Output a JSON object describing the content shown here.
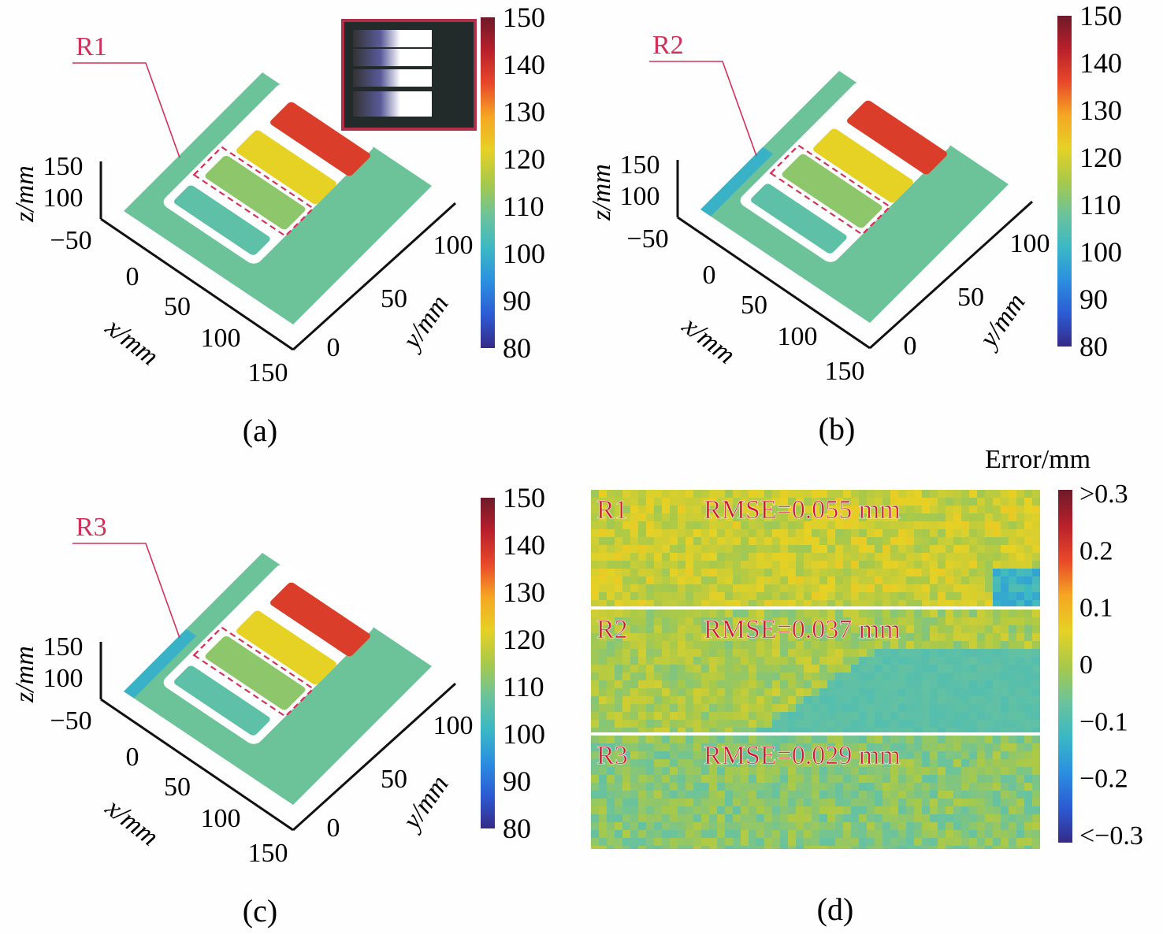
{
  "colormap": [
    "#352a87",
    "#2c5bd4",
    "#2b8fe0",
    "#3bb8c4",
    "#6cc39a",
    "#a8c94a",
    "#e6d125",
    "#f5a623",
    "#e8482a",
    "#b8202b",
    "#6e1a2a"
  ],
  "chart_data": [
    {
      "type": "surface3d",
      "panel_label": "(a)",
      "region_label": "R1",
      "xlabel": "x/mm",
      "ylabel": "y/mm",
      "zlabel": "z/mm",
      "x_ticks": [
        "0",
        "50",
        "100",
        "150"
      ],
      "y_ticks": [
        "0",
        "50",
        "100"
      ],
      "z_ticks": [
        "150",
        "100",
        "−50"
      ],
      "colorbar": {
        "ticks": [
          "150",
          "140",
          "130",
          "120",
          "110",
          "100",
          "90",
          "80"
        ],
        "range": [
          80,
          150
        ]
      },
      "inset": "photo of stepped specimen",
      "steps_height_mm": [
        106,
        112,
        122,
        138
      ]
    },
    {
      "type": "surface3d",
      "panel_label": "(b)",
      "region_label": "R2",
      "xlabel": "x/mm",
      "ylabel": "y/mm",
      "zlabel": "z/mm",
      "x_ticks": [
        "0",
        "50",
        "100",
        "150"
      ],
      "y_ticks": [
        "0",
        "50",
        "100"
      ],
      "z_ticks": [
        "150",
        "100",
        "−50"
      ],
      "colorbar": {
        "ticks": [
          "150",
          "140",
          "130",
          "120",
          "110",
          "100",
          "90",
          "80"
        ],
        "range": [
          80,
          150
        ]
      },
      "steps_height_mm": [
        106,
        112,
        122,
        138
      ]
    },
    {
      "type": "surface3d",
      "panel_label": "(c)",
      "region_label": "R3",
      "xlabel": "x/mm",
      "ylabel": "y/mm",
      "zlabel": "z/mm",
      "x_ticks": [
        "0",
        "50",
        "100",
        "150"
      ],
      "y_ticks": [
        "0",
        "50",
        "100"
      ],
      "z_ticks": [
        "150",
        "100",
        "−50"
      ],
      "colorbar": {
        "ticks": [
          "150",
          "140",
          "130",
          "120",
          "110",
          "100",
          "90",
          "80"
        ],
        "range": [
          80,
          150
        ]
      },
      "steps_height_mm": [
        106,
        112,
        122,
        138
      ]
    },
    {
      "type": "heatmap",
      "panel_label": "(d)",
      "colorbar_title": "Error/mm",
      "colorbar": {
        "ticks": [
          ">0.3",
          "0.2",
          "0.1",
          "0",
          "−0.1",
          "−0.2",
          "<−0.3"
        ],
        "range": [
          -0.3,
          0.3
        ]
      },
      "rows": [
        {
          "label": "R1",
          "rmse": "RMSE=0.055 mm",
          "mean_error": 0.03
        },
        {
          "label": "R2",
          "rmse": "RMSE=0.037 mm",
          "mean_error": 0.0
        },
        {
          "label": "R3",
          "rmse": "RMSE=0.029 mm",
          "mean_error": -0.03
        }
      ]
    }
  ]
}
